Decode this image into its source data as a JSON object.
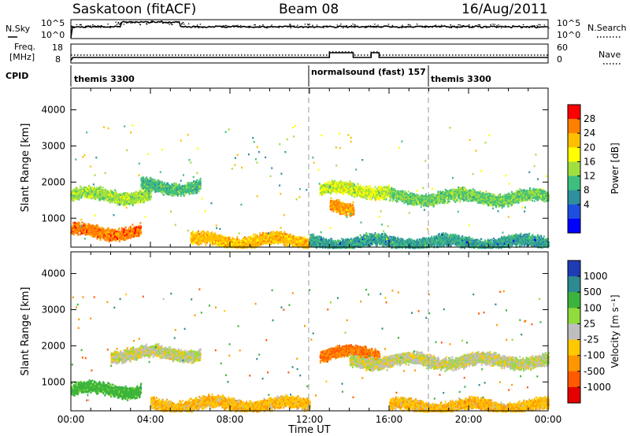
{
  "header": {
    "station": "Saskatoon (fitACF)",
    "beam": "Beam 08",
    "date": "16/Aug/2011"
  },
  "noise_panel": {
    "left_label": "N.Sky",
    "left_ticks": [
      "10^5",
      "10^0"
    ],
    "right_label": "N.Search",
    "right_ticks": [
      "10^5",
      "10^0"
    ]
  },
  "freq_panel": {
    "left_label_line1": "Freq.",
    "left_label_line2": "[MHz]",
    "left_ticks": [
      "18",
      "8"
    ],
    "right_label": "Nave",
    "right_ticks": [
      "60",
      "0"
    ]
  },
  "cpid": {
    "label": "CPID",
    "segments": [
      {
        "name": "themis 3300",
        "start_hour": 0.0
      },
      {
        "name": "normalsound (fast) 157",
        "start_hour": 12.0
      },
      {
        "name": "themis 3300",
        "start_hour": 18.0
      }
    ]
  },
  "colorbar_power": {
    "title": "Power [dB]",
    "labels": [
      "28",
      "24",
      "20",
      "16",
      "12",
      "8",
      "4"
    ],
    "colors": [
      "#ff0000",
      "#ff7f00",
      "#ffbf00",
      "#ffff00",
      "#9fdf3f",
      "#3fbf7f",
      "#2f8f9f",
      "#1f4fdf",
      "#0000ff"
    ]
  },
  "colorbar_velocity": {
    "title": "Velocity [m s⁻¹]",
    "labels": [
      "1000",
      "500",
      "100",
      "25",
      "-25",
      "-100",
      "-500",
      "-1000"
    ],
    "colors": [
      "#1e3cb4",
      "#2d8a91",
      "#3cb43c",
      "#8fdc3c",
      "#bebebe",
      "#ffc800",
      "#ff9600",
      "#ff5a00",
      "#e60000"
    ]
  },
  "chart_data": [
    {
      "type": "heatmap",
      "name": "power",
      "ylabel": "Slant Range [km]",
      "xlabel": "",
      "x_ticks": [
        "00:00",
        "04:00",
        "08:00",
        "12:00",
        "16:00",
        "20:00",
        "00:00"
      ],
      "y_ticks": [
        "1000",
        "2000",
        "3000",
        "4000"
      ],
      "xlim": [
        0,
        24
      ],
      "ylim": [
        200,
        4600
      ],
      "vertical_markers_hours": [
        12,
        18
      ],
      "scatter_bands": [
        {
          "start_hour": 0.0,
          "end_hour": 4.0,
          "range_km": 1650,
          "value_db": 14
        },
        {
          "start_hour": 0.0,
          "end_hour": 3.5,
          "range_km": 650,
          "value_db": 26
        },
        {
          "start_hour": 3.5,
          "end_hour": 6.5,
          "range_km": 1900,
          "value_db": 10
        },
        {
          "start_hour": 6.0,
          "end_hour": 12.0,
          "range_km": 400,
          "value_db": 22
        },
        {
          "start_hour": 12.5,
          "end_hour": 16.0,
          "range_km": 1800,
          "value_db": 16
        },
        {
          "start_hour": 13.0,
          "end_hour": 14.2,
          "range_km": 1300,
          "value_db": 24
        },
        {
          "start_hour": 16.0,
          "end_hour": 24.0,
          "range_km": 1600,
          "value_db": 12
        },
        {
          "start_hour": 12.0,
          "end_hour": 24.0,
          "range_km": 350,
          "value_db": 8
        }
      ]
    },
    {
      "type": "heatmap",
      "name": "velocity",
      "ylabel": "Slant Range [km]",
      "xlabel": "Time UT",
      "x_ticks": [
        "00:00",
        "04:00",
        "08:00",
        "12:00",
        "16:00",
        "20:00",
        "00:00"
      ],
      "y_ticks": [
        "1000",
        "2000",
        "3000",
        "4000"
      ],
      "xlim": [
        0,
        24
      ],
      "ylim": [
        200,
        4600
      ],
      "vertical_markers_hours": [
        12,
        18
      ],
      "scatter_bands": [
        {
          "start_hour": 0.0,
          "end_hour": 3.5,
          "range_km": 800,
          "value_ms": 150
        },
        {
          "start_hour": 2.0,
          "end_hour": 6.5,
          "range_km": 1800,
          "value_ms": 0
        },
        {
          "start_hour": 4.0,
          "end_hour": 12.0,
          "range_km": 400,
          "value_ms": -80
        },
        {
          "start_hour": 12.5,
          "end_hour": 15.5,
          "range_km": 1800,
          "value_ms": -500
        },
        {
          "start_hour": 14.0,
          "end_hour": 24.0,
          "range_km": 1600,
          "value_ms": 0
        },
        {
          "start_hour": 16.0,
          "end_hour": 24.0,
          "range_km": 350,
          "value_ms": -80
        }
      ]
    }
  ]
}
